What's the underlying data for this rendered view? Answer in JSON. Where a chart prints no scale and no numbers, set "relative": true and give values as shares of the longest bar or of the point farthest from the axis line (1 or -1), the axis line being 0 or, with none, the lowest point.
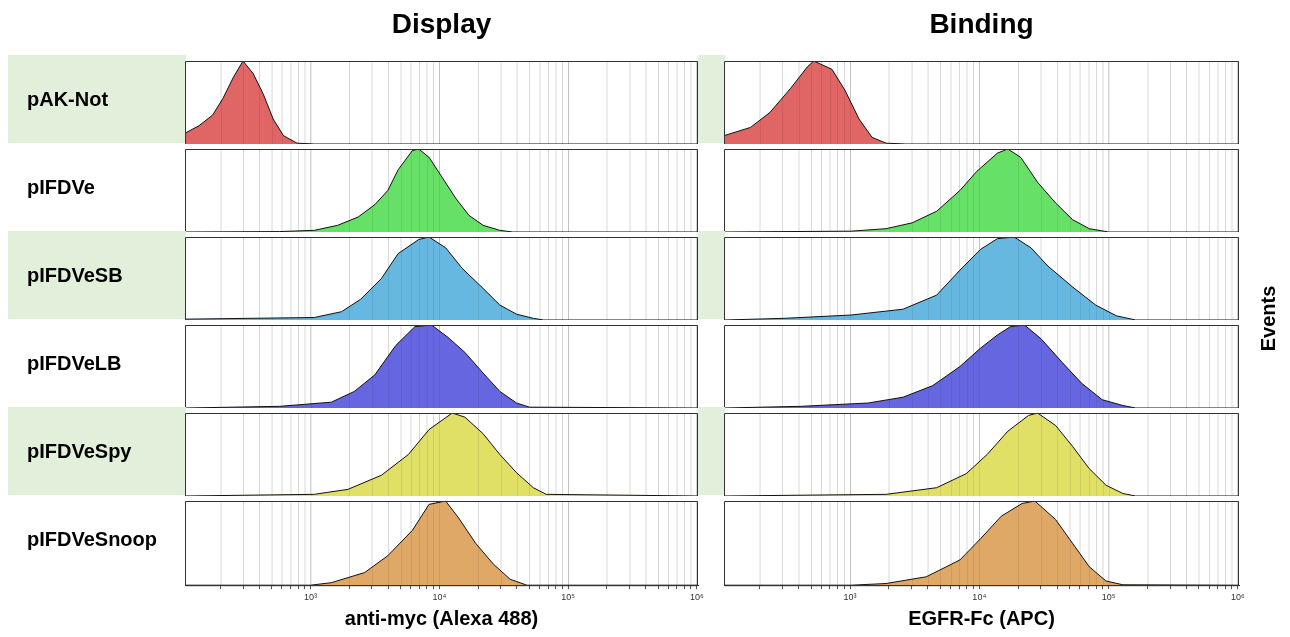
{
  "chart_data": [
    {
      "type": "area",
      "title": "Display",
      "ylabel": "pAK-Not",
      "color": "#e06666",
      "relative": true,
      "log": "x",
      "grid": "x",
      "tick_labels": false,
      "xlim": [
        106,
        1020000
      ],
      "xticks": [
        {
          "value": 200,
          "label": null
        },
        {
          "value": 300,
          "label": null
        },
        {
          "value": 400,
          "label": null
        },
        {
          "value": 500,
          "label": null
        },
        {
          "value": 600,
          "label": null
        },
        {
          "value": 700,
          "label": null
        },
        {
          "value": 800,
          "label": null
        },
        {
          "value": 900,
          "label": null
        },
        {
          "value": 1000,
          "label": null
        },
        {
          "value": 2000,
          "label": null
        },
        {
          "value": 3000,
          "label": null
        },
        {
          "value": 4000,
          "label": null
        },
        {
          "value": 5000,
          "label": null
        },
        {
          "value": 6000,
          "label": null
        },
        {
          "value": 7000,
          "label": null
        },
        {
          "value": 8000,
          "label": null
        },
        {
          "value": 9000,
          "label": null
        },
        {
          "value": 10000,
          "label": null
        },
        {
          "value": 20000,
          "label": null
        },
        {
          "value": 30000,
          "label": null
        },
        {
          "value": 40000,
          "label": null
        },
        {
          "value": 50000,
          "label": null
        },
        {
          "value": 60000,
          "label": null
        },
        {
          "value": 70000,
          "label": null
        },
        {
          "value": 80000,
          "label": null
        },
        {
          "value": 90000,
          "label": null
        },
        {
          "value": 100000,
          "label": null
        },
        {
          "value": 200000,
          "label": null
        },
        {
          "value": 300000,
          "label": null
        },
        {
          "value": 400000,
          "label": null
        },
        {
          "value": 500000,
          "label": null
        },
        {
          "value": 600000,
          "label": null
        },
        {
          "value": 700000,
          "label": null
        },
        {
          "value": 800000,
          "label": null
        },
        {
          "value": 900000,
          "label": null
        },
        {
          "value": 1000000,
          "label": null
        }
      ],
      "x": [
        106,
        136,
        174,
        209,
        251,
        299,
        358,
        430,
        513,
        617,
        785,
        1072,
        1020000
      ],
      "values": [
        0.13,
        0.22,
        0.35,
        0.55,
        0.8,
        1,
        0.85,
        0.6,
        0.3,
        0.1,
        0.01,
        0,
        0
      ]
    },
    {
      "type": "area",
      "title": "Binding",
      "color": "#e06666",
      "relative": true,
      "log": "x",
      "grid": "x",
      "tick_labels": false,
      "xlim": [
        106,
        1020000
      ],
      "xticks": [
        {
          "value": 200,
          "label": null
        },
        {
          "value": 300,
          "label": null
        },
        {
          "value": 400,
          "label": null
        },
        {
          "value": 500,
          "label": null
        },
        {
          "value": 600,
          "label": null
        },
        {
          "value": 700,
          "label": null
        },
        {
          "value": 800,
          "label": null
        },
        {
          "value": 900,
          "label": null
        },
        {
          "value": 1000,
          "label": null
        },
        {
          "value": 2000,
          "label": null
        },
        {
          "value": 3000,
          "label": null
        },
        {
          "value": 4000,
          "label": null
        },
        {
          "value": 5000,
          "label": null
        },
        {
          "value": 6000,
          "label": null
        },
        {
          "value": 7000,
          "label": null
        },
        {
          "value": 8000,
          "label": null
        },
        {
          "value": 9000,
          "label": null
        },
        {
          "value": 10000,
          "label": null
        },
        {
          "value": 20000,
          "label": null
        },
        {
          "value": 30000,
          "label": null
        },
        {
          "value": 40000,
          "label": null
        },
        {
          "value": 50000,
          "label": null
        },
        {
          "value": 60000,
          "label": null
        },
        {
          "value": 70000,
          "label": null
        },
        {
          "value": 80000,
          "label": null
        },
        {
          "value": 90000,
          "label": null
        },
        {
          "value": 100000,
          "label": null
        },
        {
          "value": 200000,
          "label": null
        },
        {
          "value": 300000,
          "label": null
        },
        {
          "value": 400000,
          "label": null
        },
        {
          "value": 500000,
          "label": null
        },
        {
          "value": 600000,
          "label": null
        },
        {
          "value": 700000,
          "label": null
        },
        {
          "value": 800000,
          "label": null
        },
        {
          "value": 900000,
          "label": null
        },
        {
          "value": 1000000,
          "label": null
        }
      ],
      "x": [
        106,
        170,
        240,
        347,
        468,
        525,
        724,
        912,
        1175,
        1480,
        1900,
        2690,
        1020000
      ],
      "values": [
        0.1,
        0.2,
        0.38,
        0.67,
        0.93,
        1,
        0.9,
        0.65,
        0.3,
        0.08,
        0.01,
        0,
        0
      ]
    },
    {
      "type": "area",
      "ylabel": "pIFDVe",
      "color": "#66e066",
      "relative": true,
      "log": "x",
      "grid": "x",
      "tick_labels": false,
      "xlim": [
        106,
        1020000
      ],
      "xticks": [
        {
          "value": 200,
          "label": null
        },
        {
          "value": 300,
          "label": null
        },
        {
          "value": 400,
          "label": null
        },
        {
          "value": 500,
          "label": null
        },
        {
          "value": 600,
          "label": null
        },
        {
          "value": 700,
          "label": null
        },
        {
          "value": 800,
          "label": null
        },
        {
          "value": 900,
          "label": null
        },
        {
          "value": 1000,
          "label": null
        },
        {
          "value": 2000,
          "label": null
        },
        {
          "value": 3000,
          "label": null
        },
        {
          "value": 4000,
          "label": null
        },
        {
          "value": 5000,
          "label": null
        },
        {
          "value": 6000,
          "label": null
        },
        {
          "value": 7000,
          "label": null
        },
        {
          "value": 8000,
          "label": null
        },
        {
          "value": 9000,
          "label": null
        },
        {
          "value": 10000,
          "label": null
        },
        {
          "value": 20000,
          "label": null
        },
        {
          "value": 30000,
          "label": null
        },
        {
          "value": 40000,
          "label": null
        },
        {
          "value": 50000,
          "label": null
        },
        {
          "value": 60000,
          "label": null
        },
        {
          "value": 70000,
          "label": null
        },
        {
          "value": 80000,
          "label": null
        },
        {
          "value": 90000,
          "label": null
        },
        {
          "value": 100000,
          "label": null
        },
        {
          "value": 200000,
          "label": null
        },
        {
          "value": 300000,
          "label": null
        },
        {
          "value": 400000,
          "label": null
        },
        {
          "value": 500000,
          "label": null
        },
        {
          "value": 600000,
          "label": null
        },
        {
          "value": 700000,
          "label": null
        },
        {
          "value": 800000,
          "label": null
        },
        {
          "value": 900000,
          "label": null
        },
        {
          "value": 1000000,
          "label": null
        }
      ],
      "x": [
        106,
        575,
        1070,
        1620,
        2340,
        3160,
        3980,
        4790,
        6170,
        6920,
        8320,
        10500,
        13500,
        17000,
        21900,
        29500,
        37200,
        1020000
      ],
      "values": [
        0,
        0.005,
        0.02,
        0.08,
        0.18,
        0.33,
        0.5,
        0.75,
        0.98,
        1,
        0.9,
        0.66,
        0.4,
        0.2,
        0.08,
        0.02,
        0,
        0
      ]
    },
    {
      "type": "area",
      "color": "#66e066",
      "relative": true,
      "log": "x",
      "grid": "x",
      "tick_labels": false,
      "xlim": [
        106,
        1020000
      ],
      "xticks": [
        {
          "value": 200,
          "label": null
        },
        {
          "value": 300,
          "label": null
        },
        {
          "value": 400,
          "label": null
        },
        {
          "value": 500,
          "label": null
        },
        {
          "value": 600,
          "label": null
        },
        {
          "value": 700,
          "label": null
        },
        {
          "value": 800,
          "label": null
        },
        {
          "value": 900,
          "label": null
        },
        {
          "value": 1000,
          "label": null
        },
        {
          "value": 2000,
          "label": null
        },
        {
          "value": 3000,
          "label": null
        },
        {
          "value": 4000,
          "label": null
        },
        {
          "value": 5000,
          "label": null
        },
        {
          "value": 6000,
          "label": null
        },
        {
          "value": 7000,
          "label": null
        },
        {
          "value": 8000,
          "label": null
        },
        {
          "value": 9000,
          "label": null
        },
        {
          "value": 10000,
          "label": null
        },
        {
          "value": 20000,
          "label": null
        },
        {
          "value": 30000,
          "label": null
        },
        {
          "value": 40000,
          "label": null
        },
        {
          "value": 50000,
          "label": null
        },
        {
          "value": 60000,
          "label": null
        },
        {
          "value": 70000,
          "label": null
        },
        {
          "value": 80000,
          "label": null
        },
        {
          "value": 90000,
          "label": null
        },
        {
          "value": 100000,
          "label": null
        },
        {
          "value": 200000,
          "label": null
        },
        {
          "value": 300000,
          "label": null
        },
        {
          "value": 400000,
          "label": null
        },
        {
          "value": 500000,
          "label": null
        },
        {
          "value": 600000,
          "label": null
        },
        {
          "value": 700000,
          "label": null
        },
        {
          "value": 800000,
          "label": null
        },
        {
          "value": 900000,
          "label": null
        },
        {
          "value": 1000000,
          "label": null
        }
      ],
      "x": [
        106,
        1020,
        1900,
        3020,
        4680,
        7080,
        9550,
        13800,
        16600,
        20900,
        28200,
        38900,
        52500,
        70800,
        100000,
        1020000
      ],
      "values": [
        0,
        0.01,
        0.04,
        0.11,
        0.25,
        0.5,
        0.73,
        0.95,
        1,
        0.9,
        0.6,
        0.35,
        0.15,
        0.04,
        0,
        0
      ]
    },
    {
      "type": "area",
      "ylabel": "pIFDVeSB",
      "color": "#66b8e0",
      "relative": true,
      "log": "x",
      "grid": "x",
      "tick_labels": false,
      "xlim": [
        106,
        1020000
      ],
      "xticks": [
        {
          "value": 200,
          "label": null
        },
        {
          "value": 300,
          "label": null
        },
        {
          "value": 400,
          "label": null
        },
        {
          "value": 500,
          "label": null
        },
        {
          "value": 600,
          "label": null
        },
        {
          "value": 700,
          "label": null
        },
        {
          "value": 800,
          "label": null
        },
        {
          "value": 900,
          "label": null
        },
        {
          "value": 1000,
          "label": null
        },
        {
          "value": 2000,
          "label": null
        },
        {
          "value": 3000,
          "label": null
        },
        {
          "value": 4000,
          "label": null
        },
        {
          "value": 5000,
          "label": null
        },
        {
          "value": 6000,
          "label": null
        },
        {
          "value": 7000,
          "label": null
        },
        {
          "value": 8000,
          "label": null
        },
        {
          "value": 9000,
          "label": null
        },
        {
          "value": 10000,
          "label": null
        },
        {
          "value": 20000,
          "label": null
        },
        {
          "value": 30000,
          "label": null
        },
        {
          "value": 40000,
          "label": null
        },
        {
          "value": 50000,
          "label": null
        },
        {
          "value": 60000,
          "label": null
        },
        {
          "value": 70000,
          "label": null
        },
        {
          "value": 80000,
          "label": null
        },
        {
          "value": 90000,
          "label": null
        },
        {
          "value": 100000,
          "label": null
        },
        {
          "value": 200000,
          "label": null
        },
        {
          "value": 300000,
          "label": null
        },
        {
          "value": 400000,
          "label": null
        },
        {
          "value": 500000,
          "label": null
        },
        {
          "value": 600000,
          "label": null
        },
        {
          "value": 700000,
          "label": null
        },
        {
          "value": 800000,
          "label": null
        },
        {
          "value": 900000,
          "label": null
        },
        {
          "value": 1000000,
          "label": null
        }
      ],
      "x": [
        106,
        1070,
        1740,
        2450,
        3550,
        4790,
        6920,
        8320,
        11200,
        15100,
        21900,
        29500,
        39800,
        53700,
        64600,
        1020000
      ],
      "values": [
        0.01,
        0.03,
        0.1,
        0.25,
        0.5,
        0.8,
        0.97,
        1,
        0.87,
        0.62,
        0.38,
        0.18,
        0.07,
        0.02,
        0,
        0
      ]
    },
    {
      "type": "area",
      "y2label": "Events",
      "color": "#66b8e0",
      "relative": true,
      "log": "x",
      "grid": "x",
      "tick_labels": false,
      "xlim": [
        106,
        1020000
      ],
      "xticks": [
        {
          "value": 200,
          "label": null
        },
        {
          "value": 300,
          "label": null
        },
        {
          "value": 400,
          "label": null
        },
        {
          "value": 500,
          "label": null
        },
        {
          "value": 600,
          "label": null
        },
        {
          "value": 700,
          "label": null
        },
        {
          "value": 800,
          "label": null
        },
        {
          "value": 900,
          "label": null
        },
        {
          "value": 1000,
          "label": null
        },
        {
          "value": 2000,
          "label": null
        },
        {
          "value": 3000,
          "label": null
        },
        {
          "value": 4000,
          "label": null
        },
        {
          "value": 5000,
          "label": null
        },
        {
          "value": 6000,
          "label": null
        },
        {
          "value": 7000,
          "label": null
        },
        {
          "value": 8000,
          "label": null
        },
        {
          "value": 9000,
          "label": null
        },
        {
          "value": 10000,
          "label": null
        },
        {
          "value": 20000,
          "label": null
        },
        {
          "value": 30000,
          "label": null
        },
        {
          "value": 40000,
          "label": null
        },
        {
          "value": 50000,
          "label": null
        },
        {
          "value": 60000,
          "label": null
        },
        {
          "value": 70000,
          "label": null
        },
        {
          "value": 80000,
          "label": null
        },
        {
          "value": 90000,
          "label": null
        },
        {
          "value": 100000,
          "label": null
        },
        {
          "value": 200000,
          "label": null
        },
        {
          "value": 300000,
          "label": null
        },
        {
          "value": 400000,
          "label": null
        },
        {
          "value": 500000,
          "label": null
        },
        {
          "value": 600000,
          "label": null
        },
        {
          "value": 700000,
          "label": null
        },
        {
          "value": 800000,
          "label": null
        },
        {
          "value": 900000,
          "label": null
        },
        {
          "value": 1000000,
          "label": null
        }
      ],
      "x": [
        106,
        309,
        1020,
        2570,
        4680,
        7080,
        10200,
        13800,
        18600,
        25100,
        33900,
        52500,
        79400,
        115000,
        162000,
        1020000
      ],
      "values": [
        0,
        0.02,
        0.06,
        0.13,
        0.3,
        0.6,
        0.85,
        0.98,
        1,
        0.87,
        0.65,
        0.4,
        0.18,
        0.05,
        0,
        0
      ]
    },
    {
      "type": "area",
      "ylabel": "pIFDVeLB",
      "color": "#6666e0",
      "relative": true,
      "log": "x",
      "grid": "x",
      "tick_labels": false,
      "xlim": [
        106,
        1020000
      ],
      "xticks": [
        {
          "value": 200,
          "label": null
        },
        {
          "value": 300,
          "label": null
        },
        {
          "value": 400,
          "label": null
        },
        {
          "value": 500,
          "label": null
        },
        {
          "value": 600,
          "label": null
        },
        {
          "value": 700,
          "label": null
        },
        {
          "value": 800,
          "label": null
        },
        {
          "value": 900,
          "label": null
        },
        {
          "value": 1000,
          "label": null
        },
        {
          "value": 2000,
          "label": null
        },
        {
          "value": 3000,
          "label": null
        },
        {
          "value": 4000,
          "label": null
        },
        {
          "value": 5000,
          "label": null
        },
        {
          "value": 6000,
          "label": null
        },
        {
          "value": 7000,
          "label": null
        },
        {
          "value": 8000,
          "label": null
        },
        {
          "value": 9000,
          "label": null
        },
        {
          "value": 10000,
          "label": null
        },
        {
          "value": 20000,
          "label": null
        },
        {
          "value": 30000,
          "label": null
        },
        {
          "value": 40000,
          "label": null
        },
        {
          "value": 50000,
          "label": null
        },
        {
          "value": 60000,
          "label": null
        },
        {
          "value": 70000,
          "label": null
        },
        {
          "value": 80000,
          "label": null
        },
        {
          "value": 90000,
          "label": null
        },
        {
          "value": 100000,
          "label": null
        },
        {
          "value": 200000,
          "label": null
        },
        {
          "value": 300000,
          "label": null
        },
        {
          "value": 400000,
          "label": null
        },
        {
          "value": 500000,
          "label": null
        },
        {
          "value": 600000,
          "label": null
        },
        {
          "value": 700000,
          "label": null
        },
        {
          "value": 800000,
          "label": null
        },
        {
          "value": 900000,
          "label": null
        },
        {
          "value": 1000000,
          "label": null
        }
      ],
      "x": [
        106,
        575,
        1450,
        2190,
        3160,
        4570,
        6460,
        8710,
        11700,
        15800,
        21900,
        29500,
        39800,
        50100,
        1020000
      ],
      "values": [
        0,
        0.02,
        0.07,
        0.2,
        0.4,
        0.75,
        0.98,
        1,
        0.85,
        0.67,
        0.42,
        0.2,
        0.06,
        0.01,
        0
      ]
    },
    {
      "type": "area",
      "color": "#6666e0",
      "relative": true,
      "log": "x",
      "grid": "x",
      "tick_labels": false,
      "xlim": [
        106,
        1020000
      ],
      "xticks": [
        {
          "value": 200,
          "label": null
        },
        {
          "value": 300,
          "label": null
        },
        {
          "value": 400,
          "label": null
        },
        {
          "value": 500,
          "label": null
        },
        {
          "value": 600,
          "label": null
        },
        {
          "value": 700,
          "label": null
        },
        {
          "value": 800,
          "label": null
        },
        {
          "value": 900,
          "label": null
        },
        {
          "value": 1000,
          "label": null
        },
        {
          "value": 2000,
          "label": null
        },
        {
          "value": 3000,
          "label": null
        },
        {
          "value": 4000,
          "label": null
        },
        {
          "value": 5000,
          "label": null
        },
        {
          "value": 6000,
          "label": null
        },
        {
          "value": 7000,
          "label": null
        },
        {
          "value": 8000,
          "label": null
        },
        {
          "value": 9000,
          "label": null
        },
        {
          "value": 10000,
          "label": null
        },
        {
          "value": 20000,
          "label": null
        },
        {
          "value": 30000,
          "label": null
        },
        {
          "value": 40000,
          "label": null
        },
        {
          "value": 50000,
          "label": null
        },
        {
          "value": 60000,
          "label": null
        },
        {
          "value": 70000,
          "label": null
        },
        {
          "value": 80000,
          "label": null
        },
        {
          "value": 90000,
          "label": null
        },
        {
          "value": 100000,
          "label": null
        },
        {
          "value": 200000,
          "label": null
        },
        {
          "value": 300000,
          "label": null
        },
        {
          "value": 400000,
          "label": null
        },
        {
          "value": 500000,
          "label": null
        },
        {
          "value": 600000,
          "label": null
        },
        {
          "value": 700000,
          "label": null
        },
        {
          "value": 800000,
          "label": null
        },
        {
          "value": 900000,
          "label": null
        },
        {
          "value": 1000000,
          "label": null
        }
      ],
      "x": [
        106,
        417,
        1380,
        2570,
        4370,
        7080,
        10200,
        13800,
        17400,
        22400,
        30200,
        43700,
        61700,
        89100,
        129000,
        162000,
        1020000
      ],
      "values": [
        0,
        0.02,
        0.06,
        0.13,
        0.27,
        0.5,
        0.72,
        0.88,
        0.98,
        1,
        0.83,
        0.55,
        0.3,
        0.1,
        0.03,
        0,
        0
      ]
    },
    {
      "type": "area",
      "ylabel": "pIFDVeSpy",
      "color": "#e0e066",
      "relative": true,
      "log": "x",
      "grid": "x",
      "tick_labels": false,
      "xlim": [
        106,
        1020000
      ],
      "xticks": [
        {
          "value": 200,
          "label": null
        },
        {
          "value": 300,
          "label": null
        },
        {
          "value": 400,
          "label": null
        },
        {
          "value": 500,
          "label": null
        },
        {
          "value": 600,
          "label": null
        },
        {
          "value": 700,
          "label": null
        },
        {
          "value": 800,
          "label": null
        },
        {
          "value": 900,
          "label": null
        },
        {
          "value": 1000,
          "label": null
        },
        {
          "value": 2000,
          "label": null
        },
        {
          "value": 3000,
          "label": null
        },
        {
          "value": 4000,
          "label": null
        },
        {
          "value": 5000,
          "label": null
        },
        {
          "value": 6000,
          "label": null
        },
        {
          "value": 7000,
          "label": null
        },
        {
          "value": 8000,
          "label": null
        },
        {
          "value": 9000,
          "label": null
        },
        {
          "value": 10000,
          "label": null
        },
        {
          "value": 20000,
          "label": null
        },
        {
          "value": 30000,
          "label": null
        },
        {
          "value": 40000,
          "label": null
        },
        {
          "value": 50000,
          "label": null
        },
        {
          "value": 60000,
          "label": null
        },
        {
          "value": 70000,
          "label": null
        },
        {
          "value": 80000,
          "label": null
        },
        {
          "value": 90000,
          "label": null
        },
        {
          "value": 100000,
          "label": null
        },
        {
          "value": 200000,
          "label": null
        },
        {
          "value": 300000,
          "label": null
        },
        {
          "value": 400000,
          "label": null
        },
        {
          "value": 500000,
          "label": null
        },
        {
          "value": 600000,
          "label": null
        },
        {
          "value": 700000,
          "label": null
        },
        {
          "value": 800000,
          "label": null
        },
        {
          "value": 900000,
          "label": null
        },
        {
          "value": 1000000,
          "label": null
        }
      ],
      "x": [
        106,
        1070,
        1950,
        3550,
        5750,
        8320,
        12600,
        15800,
        21900,
        29500,
        39800,
        53700,
        67600,
        1020000
      ],
      "values": [
        0,
        0.02,
        0.08,
        0.25,
        0.5,
        0.8,
        1,
        0.95,
        0.75,
        0.5,
        0.28,
        0.1,
        0.02,
        0
      ]
    },
    {
      "type": "area",
      "color": "#e0e066",
      "relative": true,
      "log": "x",
      "grid": "x",
      "tick_labels": false,
      "xlim": [
        106,
        1020000
      ],
      "xticks": [
        {
          "value": 200,
          "label": null
        },
        {
          "value": 300,
          "label": null
        },
        {
          "value": 400,
          "label": null
        },
        {
          "value": 500,
          "label": null
        },
        {
          "value": 600,
          "label": null
        },
        {
          "value": 700,
          "label": null
        },
        {
          "value": 800,
          "label": null
        },
        {
          "value": 900,
          "label": null
        },
        {
          "value": 1000,
          "label": null
        },
        {
          "value": 2000,
          "label": null
        },
        {
          "value": 3000,
          "label": null
        },
        {
          "value": 4000,
          "label": null
        },
        {
          "value": 5000,
          "label": null
        },
        {
          "value": 6000,
          "label": null
        },
        {
          "value": 7000,
          "label": null
        },
        {
          "value": 8000,
          "label": null
        },
        {
          "value": 9000,
          "label": null
        },
        {
          "value": 10000,
          "label": null
        },
        {
          "value": 20000,
          "label": null
        },
        {
          "value": 30000,
          "label": null
        },
        {
          "value": 40000,
          "label": null
        },
        {
          "value": 50000,
          "label": null
        },
        {
          "value": 60000,
          "label": null
        },
        {
          "value": 70000,
          "label": null
        },
        {
          "value": 80000,
          "label": null
        },
        {
          "value": 90000,
          "label": null
        },
        {
          "value": 100000,
          "label": null
        },
        {
          "value": 200000,
          "label": null
        },
        {
          "value": 300000,
          "label": null
        },
        {
          "value": 400000,
          "label": null
        },
        {
          "value": 500000,
          "label": null
        },
        {
          "value": 600000,
          "label": null
        },
        {
          "value": 700000,
          "label": null
        },
        {
          "value": 800000,
          "label": null
        },
        {
          "value": 900000,
          "label": null
        },
        {
          "value": 1000000,
          "label": null
        }
      ],
      "x": [
        106,
        1900,
        4680,
        7940,
        11500,
        16600,
        24000,
        28200,
        38900,
        52500,
        70800,
        95500,
        129000,
        162000,
        1020000
      ],
      "values": [
        0,
        0.02,
        0.1,
        0.27,
        0.5,
        0.78,
        0.97,
        1,
        0.85,
        0.6,
        0.33,
        0.13,
        0.03,
        0,
        0
      ]
    },
    {
      "type": "area",
      "ylabel": "pIFDVeSnoop",
      "xlabel": "anti-myc (Alexa 488)",
      "color": "#e0a866",
      "relative": true,
      "log": "x",
      "grid": "x",
      "tick_labels": "x",
      "xlim": [
        106,
        1020000
      ],
      "xticks": [
        {
          "value": 200,
          "label": null
        },
        {
          "value": 300,
          "label": null
        },
        {
          "value": 400,
          "label": null
        },
        {
          "value": 500,
          "label": null
        },
        {
          "value": 600,
          "label": null
        },
        {
          "value": 700,
          "label": null
        },
        {
          "value": 800,
          "label": null
        },
        {
          "value": 900,
          "label": null
        },
        {
          "value": 1000,
          "label": "10³"
        },
        {
          "value": 2000,
          "label": null
        },
        {
          "value": 3000,
          "label": null
        },
        {
          "value": 4000,
          "label": null
        },
        {
          "value": 5000,
          "label": null
        },
        {
          "value": 6000,
          "label": null
        },
        {
          "value": 7000,
          "label": null
        },
        {
          "value": 8000,
          "label": null
        },
        {
          "value": 9000,
          "label": null
        },
        {
          "value": 10000,
          "label": "10⁴"
        },
        {
          "value": 20000,
          "label": null
        },
        {
          "value": 30000,
          "label": null
        },
        {
          "value": 40000,
          "label": null
        },
        {
          "value": 50000,
          "label": null
        },
        {
          "value": 60000,
          "label": null
        },
        {
          "value": 70000,
          "label": null
        },
        {
          "value": 80000,
          "label": null
        },
        {
          "value": 90000,
          "label": null
        },
        {
          "value": 100000,
          "label": "10⁵"
        },
        {
          "value": 200000,
          "label": null
        },
        {
          "value": 300000,
          "label": null
        },
        {
          "value": 400000,
          "label": null
        },
        {
          "value": 500000,
          "label": null
        },
        {
          "value": 600000,
          "label": null
        },
        {
          "value": 700000,
          "label": null
        },
        {
          "value": 800000,
          "label": null
        },
        {
          "value": 900000,
          "label": null
        },
        {
          "value": 1000000,
          "label": "10⁶"
        }
      ],
      "x": [
        106,
        1000,
        1450,
        2630,
        3980,
        6170,
        8320,
        11200,
        14100,
        19100,
        26300,
        35500,
        47900,
        1020000
      ],
      "values": [
        0,
        0,
        0.03,
        0.15,
        0.35,
        0.65,
        0.96,
        1,
        0.8,
        0.5,
        0.25,
        0.07,
        0,
        0
      ]
    },
    {
      "type": "area",
      "xlabel": "EGFR-Fc (APC)",
      "color": "#e0a866",
      "relative": true,
      "log": "x",
      "grid": "x",
      "tick_labels": "x",
      "xlim": [
        106,
        1020000
      ],
      "xticks": [
        {
          "value": 200,
          "label": null
        },
        {
          "value": 300,
          "label": null
        },
        {
          "value": 400,
          "label": null
        },
        {
          "value": 500,
          "label": null
        },
        {
          "value": 600,
          "label": null
        },
        {
          "value": 700,
          "label": null
        },
        {
          "value": 800,
          "label": null
        },
        {
          "value": 900,
          "label": null
        },
        {
          "value": 1000,
          "label": "10³"
        },
        {
          "value": 2000,
          "label": null
        },
        {
          "value": 3000,
          "label": null
        },
        {
          "value": 4000,
          "label": null
        },
        {
          "value": 5000,
          "label": null
        },
        {
          "value": 6000,
          "label": null
        },
        {
          "value": 7000,
          "label": null
        },
        {
          "value": 8000,
          "label": null
        },
        {
          "value": 9000,
          "label": null
        },
        {
          "value": 10000,
          "label": "10⁴"
        },
        {
          "value": 20000,
          "label": null
        },
        {
          "value": 30000,
          "label": null
        },
        {
          "value": 40000,
          "label": null
        },
        {
          "value": 50000,
          "label": null
        },
        {
          "value": 60000,
          "label": null
        },
        {
          "value": 70000,
          "label": null
        },
        {
          "value": 80000,
          "label": null
        },
        {
          "value": 90000,
          "label": null
        },
        {
          "value": 100000,
          "label": "10⁵"
        },
        {
          "value": 200000,
          "label": null
        },
        {
          "value": 300000,
          "label": null
        },
        {
          "value": 400000,
          "label": null
        },
        {
          "value": 500000,
          "label": null
        },
        {
          "value": 600000,
          "label": null
        },
        {
          "value": 700000,
          "label": null
        },
        {
          "value": 800000,
          "label": null
        },
        {
          "value": 900000,
          "label": null
        },
        {
          "value": 1000000,
          "label": "10⁶"
        }
      ],
      "x": [
        106,
        1020,
        1900,
        3890,
        7080,
        10200,
        14800,
        21400,
        26900,
        38900,
        52500,
        70800,
        95500,
        129000,
        1020000
      ],
      "values": [
        0,
        0,
        0.02,
        0.1,
        0.3,
        0.55,
        0.82,
        0.97,
        1,
        0.78,
        0.5,
        0.22,
        0.05,
        0.005,
        0
      ]
    }
  ]
}
